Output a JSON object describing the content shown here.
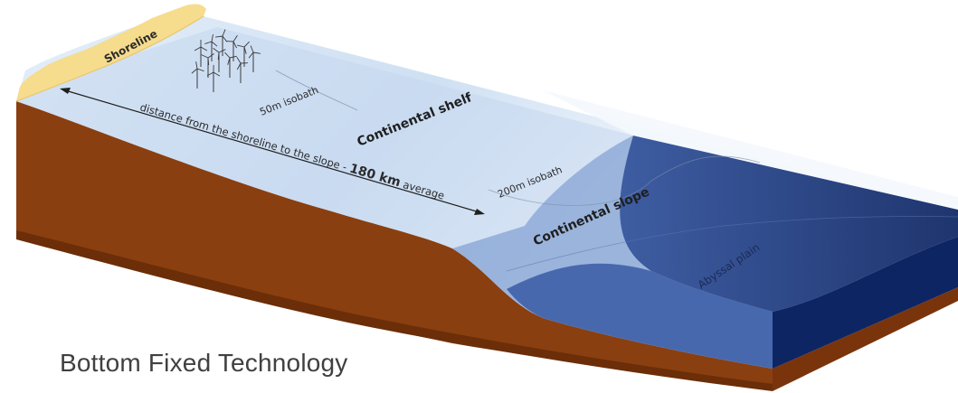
{
  "diagram": {
    "labels": {
      "shoreline": "Shoreline",
      "isobath_50": "50m isobath",
      "continental_shelf": "Continental shelf",
      "distance_prefix": "distance from the shoreline to the slope - ",
      "distance_value": "180 km",
      "distance_suffix": " average",
      "isobath_200": "200m isobath",
      "continental_slope": "Continental slope",
      "abyssal_plain": "Abyssal plain"
    },
    "caption": "Bottom Fixed Technology",
    "colors": {
      "sand": "#f6dc8d",
      "earth_dark": "#6e3008",
      "earth": "#8c4010",
      "shallow_water": "#d2e2f4",
      "deep_water": "#0d2a6b",
      "text": "#2b2b2b"
    }
  }
}
